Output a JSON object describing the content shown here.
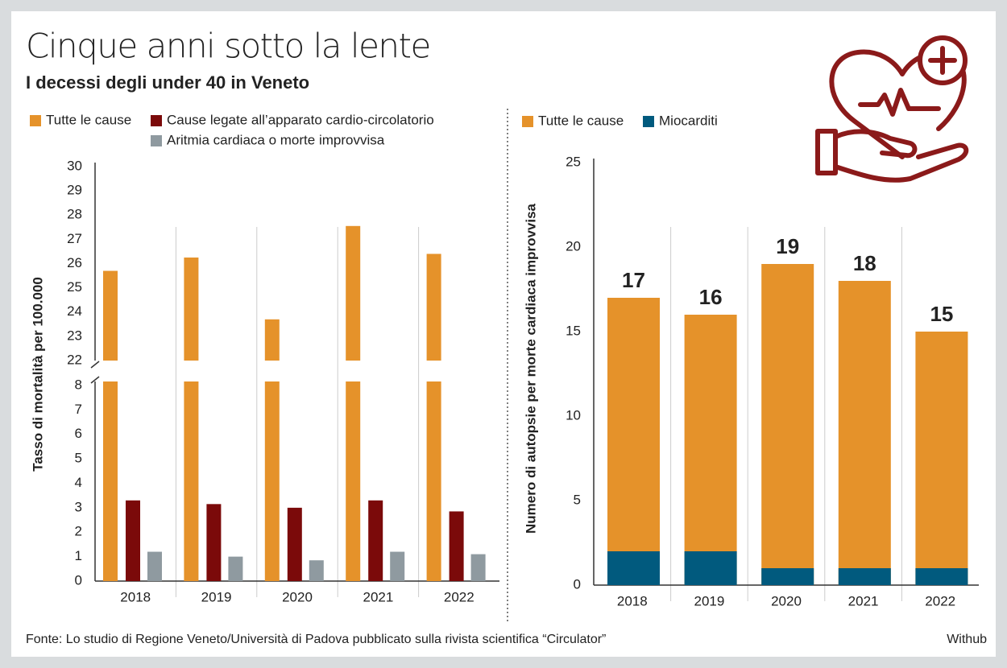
{
  "title": "Cinque anni sotto la lente",
  "subtitle": "I decessi degli under 40 in Veneto",
  "source": "Fonte: Lo studio di Regione Veneto/Università di Padova pubblicato sulla rivista scientifica “Circulator”",
  "credit": "Withub",
  "chart_data": [
    {
      "type": "bar",
      "y_label": "Tasso di mortalità per 100.000",
      "categories": [
        "2018",
        "2019",
        "2020",
        "2021",
        "2022"
      ],
      "series": [
        {
          "name": "Tutte le cause",
          "color": "#e5922a",
          "values": [
            25.7,
            26.25,
            23.7,
            27.55,
            26.4
          ]
        },
        {
          "name": "Cause legate all’apparato cardio-circolatorio",
          "color": "#7b0a0a",
          "values": [
            3.3,
            3.15,
            3.0,
            3.3,
            2.85
          ]
        },
        {
          "name": "Aritmia cardiaca o morte improvvisa",
          "color": "#8f9aa0",
          "values": [
            1.2,
            1.0,
            0.85,
            1.2,
            1.1
          ]
        }
      ],
      "ylim": [
        0,
        30
      ],
      "axis_break": [
        8,
        22
      ],
      "yticks": [
        0,
        1,
        2,
        3,
        4,
        5,
        6,
        7,
        8,
        22,
        23,
        24,
        25,
        26,
        27,
        28,
        29,
        30
      ],
      "legend": "top-left"
    },
    {
      "type": "bar",
      "overlap": true,
      "y_label": "Numero di autopsie per morte cardiaca improvvisa",
      "categories": [
        "2018",
        "2019",
        "2020",
        "2021",
        "2022"
      ],
      "series": [
        {
          "name": "Tutte le cause",
          "color": "#e5922a",
          "values": [
            17,
            16,
            19,
            18,
            15
          ]
        },
        {
          "name": "Miocarditi",
          "color": "#015a7e",
          "values": [
            2,
            2,
            1,
            1,
            1
          ]
        }
      ],
      "ylim": [
        0,
        25
      ],
      "yticks": [
        0,
        5,
        10,
        15,
        20,
        25
      ],
      "data_labels": true,
      "legend": "top-left"
    }
  ]
}
